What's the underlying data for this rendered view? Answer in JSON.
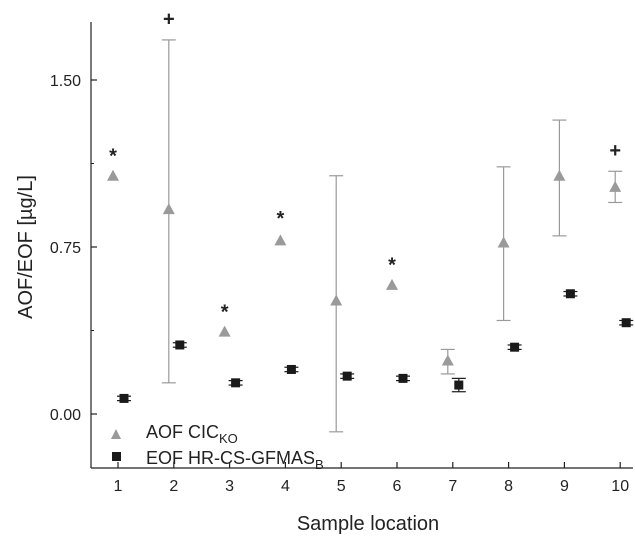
{
  "chart_data": {
    "type": "scatter",
    "xlabel": "Sample location",
    "ylabel": "AOF/EOF [µg/L]",
    "categories": [
      "1",
      "2",
      "3",
      "4",
      "5",
      "6",
      "7",
      "8",
      "9",
      "10"
    ],
    "ylim": [
      -0.2,
      1.75
    ],
    "yticks": [
      0.0,
      0.75,
      1.5
    ],
    "ytick_labels": [
      "0.00",
      "0.75",
      "1.50"
    ],
    "grid": false,
    "legend": "bottom-left",
    "series": [
      {
        "name_main": "AOF CIC",
        "name_sub": "KO",
        "marker": "triangle",
        "color": "#9a9a9a",
        "values": [
          1.07,
          0.92,
          0.37,
          0.78,
          0.51,
          0.58,
          0.24,
          0.77,
          1.07,
          1.02
        ],
        "err_low": [
          null,
          0.14,
          null,
          null,
          -0.08,
          null,
          0.18,
          0.42,
          0.8,
          0.95
        ],
        "err_high": [
          null,
          1.68,
          null,
          null,
          1.07,
          null,
          0.29,
          1.11,
          1.32,
          1.09
        ]
      },
      {
        "name_main": "EOF HR-CS-GFMAS",
        "name_sub": "B",
        "marker": "square",
        "color": "#1a1a1a",
        "values": [
          0.07,
          0.31,
          0.14,
          0.2,
          0.17,
          0.16,
          0.13,
          0.3,
          0.54,
          0.41
        ],
        "err_low": [
          0.06,
          0.3,
          0.13,
          0.19,
          0.16,
          0.15,
          0.1,
          0.29,
          0.53,
          0.4
        ],
        "err_high": [
          0.08,
          0.32,
          0.15,
          0.21,
          0.18,
          0.17,
          0.16,
          0.31,
          0.55,
          0.42
        ]
      }
    ],
    "annotations": [
      {
        "text": "*",
        "category": "1",
        "y": 1.17
      },
      {
        "text": "+",
        "category": "2",
        "y": 1.78
      },
      {
        "text": "*",
        "category": "3",
        "y": 0.47
      },
      {
        "text": "*",
        "category": "4",
        "y": 0.89
      },
      {
        "text": "*",
        "category": "6",
        "y": 0.68
      },
      {
        "text": "+",
        "category": "10",
        "y": 1.19
      }
    ]
  }
}
